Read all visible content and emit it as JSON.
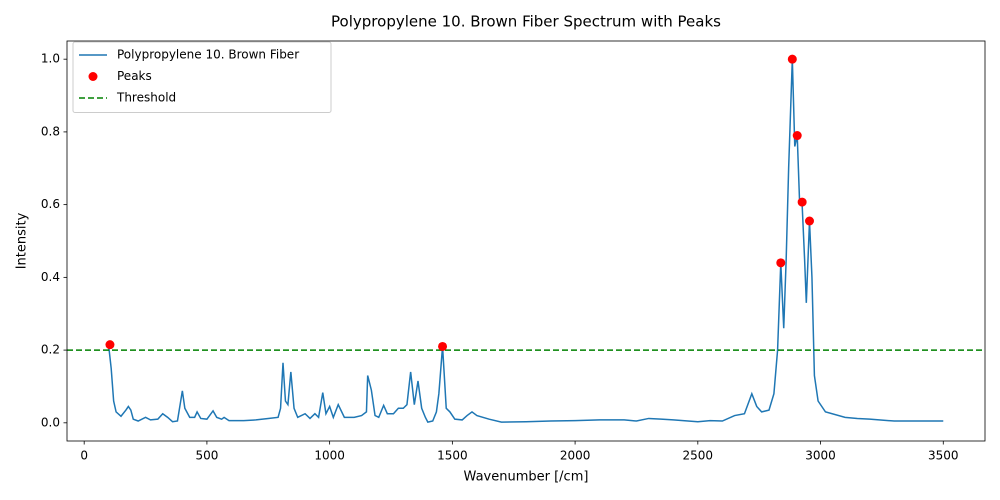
{
  "chart_data": {
    "type": "line",
    "title": "Polypropylene 10. Brown Fiber Spectrum with Peaks",
    "x_label": "Wavenumber [/cm]",
    "y_label": "Intensity",
    "xlim": [
      -70,
      3670
    ],
    "ylim": [
      -0.05,
      1.05
    ],
    "xticks": [
      0,
      500,
      1000,
      1500,
      2000,
      2500,
      3000,
      3500
    ],
    "yticks": [
      {
        "value": 0,
        "label": "0.0"
      },
      {
        "value": 0.2,
        "label": "0.2"
      },
      {
        "value": 0.4,
        "label": "0.4"
      },
      {
        "value": 0.6,
        "label": "0.6"
      },
      {
        "value": 0.8,
        "label": "0.8"
      },
      {
        "value": 1,
        "label": "1.0"
      }
    ],
    "legend": "upper left",
    "series": [
      {
        "name": "Polypropylene 10. Brown Fiber",
        "type": "line",
        "color": "#1f77b4",
        "x": [
          100,
          110,
          120,
          130,
          150,
          170,
          180,
          190,
          200,
          220,
          250,
          270,
          300,
          320,
          340,
          360,
          380,
          400,
          410,
          430,
          450,
          460,
          475,
          500,
          525,
          540,
          560,
          570,
          590,
          650,
          700,
          750,
          790,
          800,
          810,
          820,
          830,
          842,
          855,
          870,
          900,
          920,
          940,
          955,
          972,
          985,
          1000,
          1015,
          1035,
          1060,
          1100,
          1130,
          1150,
          1155,
          1170,
          1185,
          1200,
          1220,
          1235,
          1260,
          1280,
          1300,
          1315,
          1330,
          1345,
          1360,
          1375,
          1390,
          1400,
          1420,
          1435,
          1445,
          1460,
          1468,
          1475,
          1490,
          1510,
          1540,
          1560,
          1580,
          1600,
          1650,
          1700,
          1800,
          1900,
          2000,
          2100,
          2200,
          2250,
          2300,
          2350,
          2400,
          2500,
          2550,
          2600,
          2650,
          2690,
          2720,
          2740,
          2760,
          2790,
          2810,
          2825,
          2838,
          2850,
          2860,
          2870,
          2885,
          2895,
          2905,
          2915,
          2925,
          2935,
          2942,
          2955,
          2965,
          2975,
          2990,
          3020,
          3100,
          3150,
          3200,
          3300,
          3400,
          3500
        ],
        "values": [
          0.21,
          0.15,
          0.06,
          0.03,
          0.018,
          0.035,
          0.045,
          0.035,
          0.01,
          0.005,
          0.015,
          0.008,
          0.01,
          0.025,
          0.015,
          0.003,
          0.005,
          0.088,
          0.04,
          0.015,
          0.015,
          0.03,
          0.012,
          0.01,
          0.033,
          0.015,
          0.01,
          0.015,
          0.006,
          0.006,
          0.008,
          0.012,
          0.015,
          0.04,
          0.165,
          0.06,
          0.05,
          0.14,
          0.04,
          0.015,
          0.025,
          0.012,
          0.025,
          0.015,
          0.083,
          0.025,
          0.045,
          0.015,
          0.05,
          0.015,
          0.015,
          0.02,
          0.03,
          0.13,
          0.09,
          0.02,
          0.015,
          0.048,
          0.025,
          0.025,
          0.04,
          0.04,
          0.05,
          0.14,
          0.05,
          0.115,
          0.04,
          0.015,
          0.002,
          0.005,
          0.03,
          0.08,
          0.21,
          0.12,
          0.04,
          0.03,
          0.01,
          0.008,
          0.02,
          0.03,
          0.02,
          0.01,
          0.002,
          0.003,
          0.005,
          0.006,
          0.008,
          0.008,
          0.005,
          0.012,
          0.01,
          0.008,
          0.003,
          0.006,
          0.005,
          0.02,
          0.025,
          0.08,
          0.045,
          0.03,
          0.035,
          0.08,
          0.2,
          0.44,
          0.26,
          0.45,
          0.7,
          1.0,
          0.76,
          0.79,
          0.6,
          0.6,
          0.45,
          0.33,
          0.555,
          0.4,
          0.13,
          0.06,
          0.03,
          0.015,
          0.012,
          0.01,
          0.005,
          0.005,
          0.005
        ]
      },
      {
        "name": "Peaks",
        "type": "scatter",
        "color": "#ff0000",
        "x": [
          105,
          1460,
          2838,
          2885,
          2905,
          2925,
          2955
        ],
        "values": [
          0.215,
          0.21,
          0.44,
          1.0,
          0.79,
          0.607,
          0.555
        ]
      }
    ],
    "threshold": {
      "name": "Threshold",
      "value": 0.2,
      "color": "#008000"
    }
  }
}
